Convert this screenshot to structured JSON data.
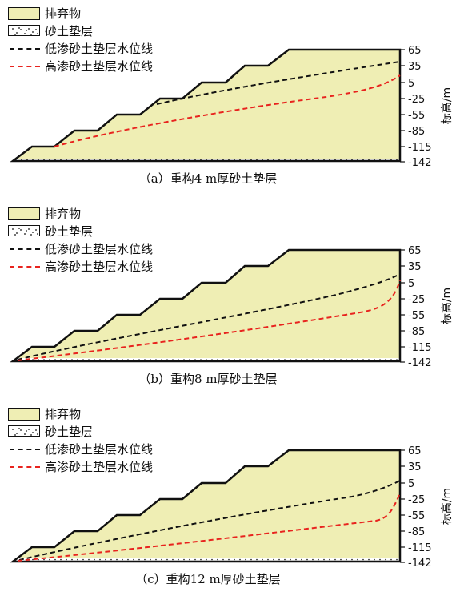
{
  "legend": {
    "fill_label": "排弃物",
    "sand_label": "砂土垫层",
    "low_perm_label": "低渗砂土垫层水位线",
    "high_perm_label": "高渗砂土垫层水位线"
  },
  "colors": {
    "fill": "#efeeb4",
    "low_perm_line": "#111111",
    "high_perm_line": "#e8231e"
  },
  "y_axis": {
    "label": "标高/m",
    "ticks": [
      "65",
      "35",
      "5",
      "-25",
      "-55",
      "-85",
      "-115",
      "-142"
    ]
  },
  "panels": [
    {
      "caption": "（a）重构4 m厚砂土垫层",
      "sand_thickness_m": 4
    },
    {
      "caption": "（b）重构8 m厚砂土垫层",
      "sand_thickness_m": 8
    },
    {
      "caption": "（c）重构12 m厚砂土垫层",
      "sand_thickness_m": 12
    }
  ]
}
